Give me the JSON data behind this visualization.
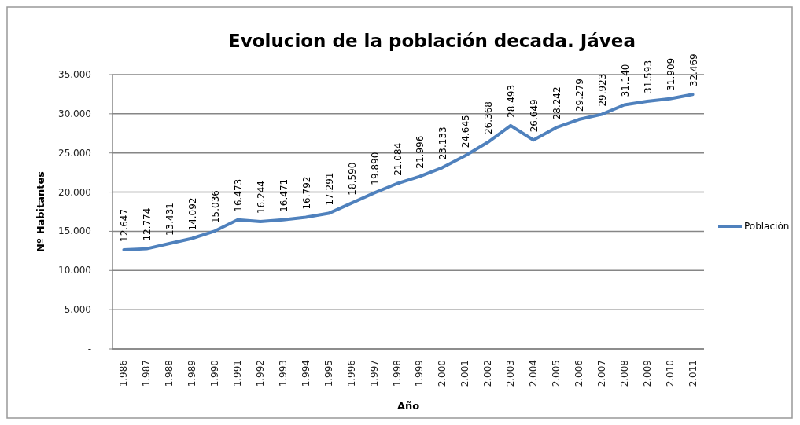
{
  "chart_data": {
    "type": "line",
    "title": "Evolucion de la población decada.  Jávea",
    "xlabel": "Año",
    "ylabel": "Nº Habitantes",
    "categories": [
      "1.986",
      "1.987",
      "1.988",
      "1.989",
      "1.990",
      "1.991",
      "1.992",
      "1.993",
      "1.994",
      "1.995",
      "1.996",
      "1.997",
      "1.998",
      "1.999",
      "2.000",
      "2.001",
      "2.002",
      "2.003",
      "2.004",
      "2.005",
      "2.006",
      "2.007",
      "2.008",
      "2.009",
      "2.010",
      "2.011"
    ],
    "series": [
      {
        "name": "Población",
        "color": "#4f81bd",
        "values": [
          12647,
          12774,
          13431,
          14092,
          15036,
          16473,
          16244,
          16471,
          16792,
          17291,
          18590,
          19890,
          21084,
          21996,
          23133,
          24645,
          26368,
          28493,
          26649,
          28242,
          29279,
          29923,
          31140,
          31593,
          31909,
          32469
        ],
        "value_labels": [
          "12.647",
          "12.774",
          "13.431",
          "14.092",
          "15.036",
          "16.473",
          "16.244",
          "16.471",
          "16.792",
          "17.291",
          "18.590",
          "19.890",
          "21.084",
          "21.996",
          "23.133",
          "24.645",
          "26.368",
          "28.493",
          "26.649",
          "28.242",
          "29.279",
          "29.923",
          "31.140",
          "31.593",
          "31.909",
          "32.469"
        ]
      }
    ],
    "ylim": [
      0,
      35000
    ],
    "yticks": [
      {
        "value": 0,
        "label": "-"
      },
      {
        "value": 5000,
        "label": "5.000"
      },
      {
        "value": 10000,
        "label": "10.000"
      },
      {
        "value": 15000,
        "label": "15.000"
      },
      {
        "value": 20000,
        "label": "20.000"
      },
      {
        "value": 25000,
        "label": "25.000"
      },
      {
        "value": 30000,
        "label": "30.000"
      },
      {
        "value": 35000,
        "label": "35.000"
      }
    ],
    "grid": "y",
    "legend": "right",
    "marker": "none",
    "line_style": "solid"
  }
}
